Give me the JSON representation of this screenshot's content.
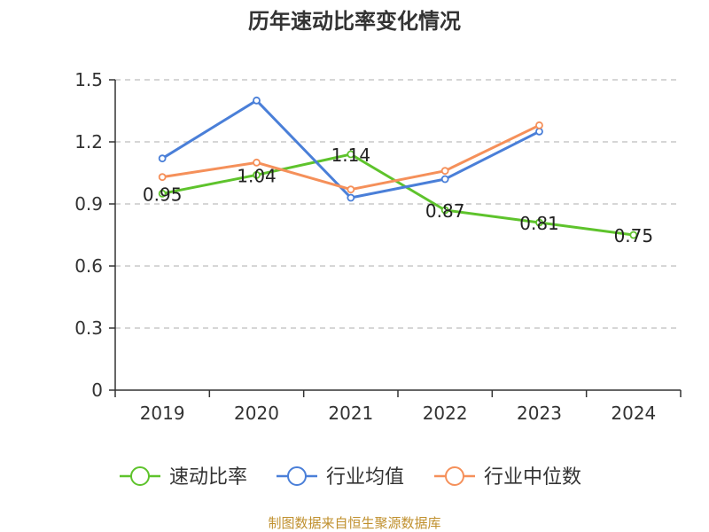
{
  "chart_data": {
    "type": "line",
    "title": "历年速动比率变化情况",
    "categories": [
      "2019",
      "2020",
      "2021",
      "2022",
      "2023",
      "2024"
    ],
    "y_ticks": [
      "0",
      "0.3",
      "0.6",
      "0.9",
      "1.2",
      "1.5"
    ],
    "ylim": [
      0,
      1.5
    ],
    "grid": true,
    "legend_position": "bottom",
    "series": [
      {
        "name": "速动比率",
        "color": "#5ec32c",
        "values": [
          0.95,
          1.04,
          1.14,
          0.87,
          0.81,
          0.75
        ],
        "labels": [
          "0.95",
          "1.04",
          "1.14",
          "0.87",
          "0.81",
          "0.75"
        ]
      },
      {
        "name": "行业均值",
        "color": "#4a7fd8",
        "values": [
          1.12,
          1.4,
          0.93,
          1.02,
          1.25,
          null
        ]
      },
      {
        "name": "行业中位数",
        "color": "#f5905a",
        "values": [
          1.03,
          1.1,
          0.97,
          1.06,
          1.28,
          null
        ]
      }
    ],
    "source": "制图数据来自恒生聚源数据库"
  }
}
